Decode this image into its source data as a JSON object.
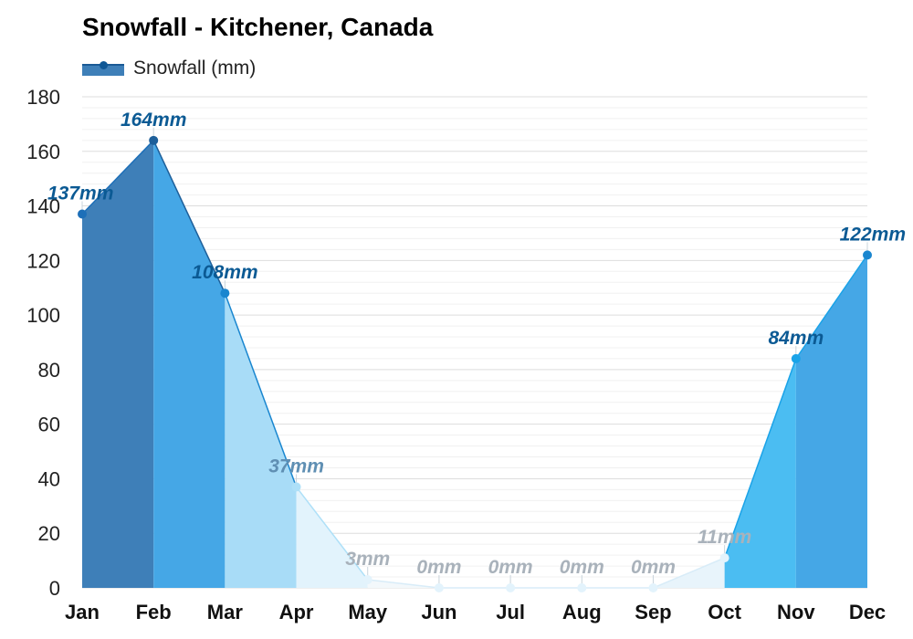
{
  "title": "Snowfall - Kitchener, Canada",
  "legend": {
    "label": "Snowfall (mm)",
    "color": "#0e5796"
  },
  "colors": {
    "grid_major": "#dddddd",
    "grid_minor": "#f0f0f0",
    "label_strong": "#0b5a94",
    "label_faint": "#a9b2bb",
    "label_mid": "#5f8fb3"
  },
  "chart_data": {
    "type": "area",
    "title": "Snowfall - Kitchener, Canada",
    "xlabel": "",
    "ylabel": "",
    "ylim": [
      0,
      180
    ],
    "yticks": [
      0,
      20,
      40,
      60,
      80,
      100,
      120,
      140,
      160,
      180
    ],
    "grid": true,
    "legend_position": "top-left",
    "categories": [
      "Jan",
      "Feb",
      "Mar",
      "Apr",
      "May",
      "Jun",
      "Jul",
      "Aug",
      "Sep",
      "Oct",
      "Nov",
      "Dec"
    ],
    "series": [
      {
        "name": "Snowfall (mm)",
        "values": [
          137,
          164,
          108,
          37,
          3,
          0,
          0,
          0,
          0,
          11,
          84,
          122
        ],
        "unit": "mm",
        "data_labels": [
          "137mm",
          "164mm",
          "108mm",
          "37mm",
          "3mm",
          "0mm",
          "0mm",
          "0mm",
          "0mm",
          "11mm",
          "84mm",
          "122mm"
        ],
        "segment_colors": [
          "#3e7fb8",
          "#45a7e6",
          "#a8dcf7",
          "#e2f3fc",
          "#f3f8fb",
          "#f3f8fb",
          "#f3f8fb",
          "#f3f8fb",
          "#e8f4fb",
          "#4bbdf2",
          "#45a7e6"
        ],
        "point_colors": [
          "#1d6fb8",
          "#1d5f9a",
          "#1a86cf",
          "#aee0f8",
          "#e3f3fc",
          "#e3f3fc",
          "#e3f3fc",
          "#e3f3fc",
          "#e3f3fc",
          "#e3f3fc",
          "#1aa3e8",
          "#1a86cf"
        ],
        "label_colors": [
          "#0b5a94",
          "#0b5a94",
          "#0b5a94",
          "#5f8fb3",
          "#a9b2bb",
          "#a9b2bb",
          "#a9b2bb",
          "#a9b2bb",
          "#a9b2bb",
          "#a9b2bb",
          "#0b5a94",
          "#0b5a94"
        ]
      }
    ]
  }
}
